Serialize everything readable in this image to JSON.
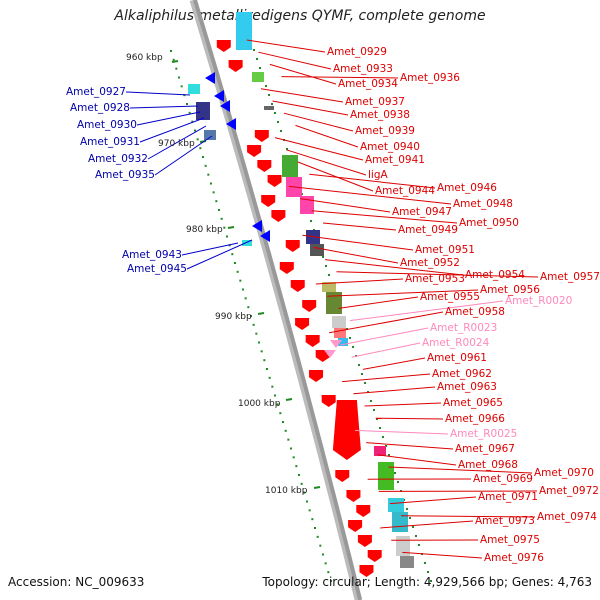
{
  "title": "Alkaliphilus metalliredigens QYMF, complete genome",
  "footer": {
    "accession": "Accession: NC_009633",
    "summary": "Topology: circular; Length: 4,929,566 bp; Genes: 4,763"
  },
  "colors": {
    "forward_gene": "#ff0000",
    "reverse_gene": "#0000ff",
    "rna_gene": "#ff99cc",
    "backbone": "#999999",
    "tick": "#228822",
    "label_forward": "#dd0000",
    "label_reverse": "#0000aa",
    "label_rna": "#ff88bb"
  },
  "scale_labels": [
    {
      "text": "960 kbp"
    },
    {
      "text": "970 kbp"
    },
    {
      "text": "980 kbp"
    },
    {
      "text": "990 kbp"
    },
    {
      "text": "1000 kbp"
    },
    {
      "text": "1010 kbp"
    }
  ],
  "left_labels": [
    {
      "text": "Amet_0927"
    },
    {
      "text": "Amet_0928"
    },
    {
      "text": "Amet_0930"
    },
    {
      "text": "Amet_0931"
    },
    {
      "text": "Amet_0932"
    },
    {
      "text": "Amet_0935"
    },
    {
      "text": "Amet_0943"
    },
    {
      "text": "Amet_0945"
    }
  ],
  "right_labels": [
    {
      "text": "Amet_0929",
      "kind": "gene"
    },
    {
      "text": "Amet_0933",
      "kind": "gene"
    },
    {
      "text": "Amet_0934",
      "kind": "gene"
    },
    {
      "text": "Amet_0936",
      "kind": "gene"
    },
    {
      "text": "Amet_0937",
      "kind": "gene"
    },
    {
      "text": "Amet_0938",
      "kind": "gene"
    },
    {
      "text": "Amet_0939",
      "kind": "gene"
    },
    {
      "text": "Amet_0940",
      "kind": "gene"
    },
    {
      "text": "Amet_0941",
      "kind": "gene"
    },
    {
      "text": "ligA",
      "kind": "gene"
    },
    {
      "text": "Amet_0944",
      "kind": "gene"
    },
    {
      "text": "Amet_0946",
      "kind": "gene"
    },
    {
      "text": "Amet_0948",
      "kind": "gene"
    },
    {
      "text": "Amet_0947",
      "kind": "gene"
    },
    {
      "text": "Amet_0950",
      "kind": "gene"
    },
    {
      "text": "Amet_0949",
      "kind": "gene"
    },
    {
      "text": "Amet_0951",
      "kind": "gene"
    },
    {
      "text": "Amet_0952",
      "kind": "gene"
    },
    {
      "text": "Amet_0954",
      "kind": "gene"
    },
    {
      "text": "Amet_0957",
      "kind": "gene"
    },
    {
      "text": "Amet_0953",
      "kind": "gene"
    },
    {
      "text": "Amet_0956",
      "kind": "gene"
    },
    {
      "text": "Amet_0955",
      "kind": "gene"
    },
    {
      "text": "Amet_R0020",
      "kind": "rna"
    },
    {
      "text": "Amet_0958",
      "kind": "gene"
    },
    {
      "text": "Amet_R0023",
      "kind": "rna"
    },
    {
      "text": "Amet_R0024",
      "kind": "rna"
    },
    {
      "text": "Amet_0961",
      "kind": "gene"
    },
    {
      "text": "Amet_0962",
      "kind": "gene"
    },
    {
      "text": "Amet_0963",
      "kind": "gene"
    },
    {
      "text": "Amet_0965",
      "kind": "gene"
    },
    {
      "text": "Amet_0966",
      "kind": "gene"
    },
    {
      "text": "Amet_R0025",
      "kind": "rna"
    },
    {
      "text": "Amet_0967",
      "kind": "gene"
    },
    {
      "text": "Amet_0968",
      "kind": "gene"
    },
    {
      "text": "Amet_0970",
      "kind": "gene"
    },
    {
      "text": "Amet_0969",
      "kind": "gene"
    },
    {
      "text": "Amet_0972",
      "kind": "gene"
    },
    {
      "text": "Amet_0971",
      "kind": "gene"
    },
    {
      "text": "Amet_0974",
      "kind": "gene"
    },
    {
      "text": "Amet_0973",
      "kind": "gene"
    },
    {
      "text": "Amet_0975",
      "kind": "gene"
    },
    {
      "text": "Amet_0976",
      "kind": "gene"
    }
  ]
}
